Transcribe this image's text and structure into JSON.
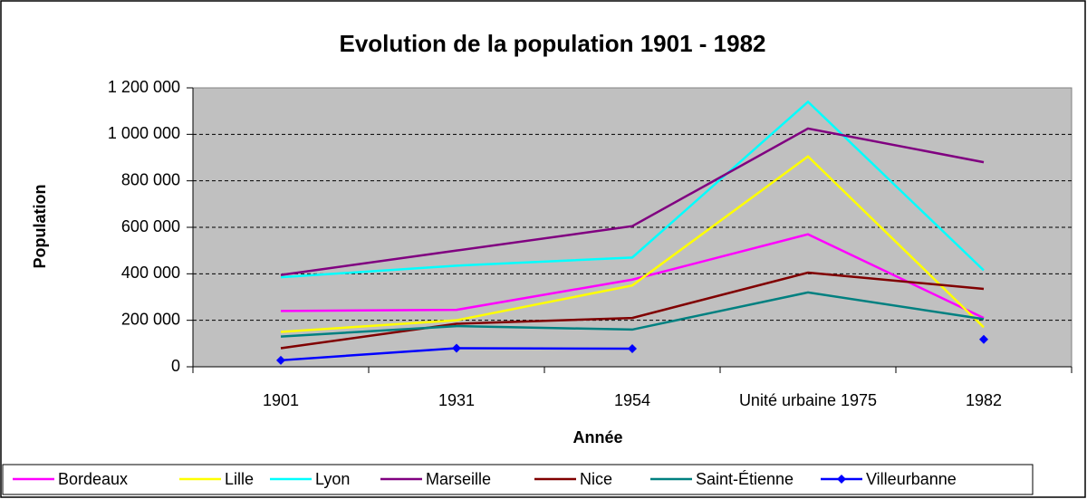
{
  "chart_data": {
    "type": "line",
    "title": "Evolution de la population 1901 - 1982",
    "x_label": "Année",
    "y_label": "Population",
    "categories": [
      "1901",
      "1931",
      "1954",
      "Unité urbaine 1975",
      "1982"
    ],
    "series": [
      {
        "name": "Bordeaux",
        "color": "#ff00ff",
        "values": [
          240000,
          245000,
          375000,
          570000,
          210000
        ]
      },
      {
        "name": "Lille",
        "color": "#ffff00",
        "values": [
          150000,
          200000,
          350000,
          905000,
          170000
        ]
      },
      {
        "name": "Lyon",
        "color": "#00ffff",
        "values": [
          385000,
          435000,
          470000,
          1140000,
          415000
        ]
      },
      {
        "name": "Marseille",
        "color": "#800080",
        "values": [
          395000,
          500000,
          605000,
          1025000,
          880000
        ]
      },
      {
        "name": "Nice",
        "color": "#800000",
        "values": [
          80000,
          185000,
          210000,
          405000,
          335000
        ]
      },
      {
        "name": "Saint-Étienne",
        "color": "#008080",
        "values": [
          130000,
          175000,
          160000,
          320000,
          205000
        ]
      },
      {
        "name": "Villeurbanne",
        "color": "#0000ff",
        "marker": "diamond",
        "values": [
          28000,
          80000,
          78000,
          null,
          118000
        ]
      }
    ],
    "ylim": [
      0,
      1200000
    ],
    "yticks": [
      0,
      {
        "value": 200000,
        "label": "200 000"
      },
      {
        "value": 400000,
        "label": "400 000"
      },
      {
        "value": 600000,
        "label": "600 000"
      },
      {
        "value": 800000,
        "label": "800 000"
      },
      {
        "value": 1000000,
        "label": "1 000 000"
      },
      {
        "value": 1200000,
        "label": "1 200 000"
      }
    ],
    "grid": true,
    "legend": "bottom",
    "plot_background": "#c0c0c0"
  }
}
